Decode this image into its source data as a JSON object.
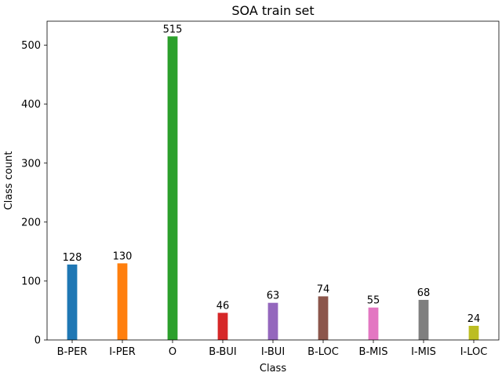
{
  "chart_data": {
    "type": "bar",
    "title": "SOA train set",
    "xlabel": "Class",
    "ylabel": "Class count",
    "categories": [
      "B-PER",
      "I-PER",
      "O",
      "B-BUI",
      "I-BUI",
      "B-LOC",
      "B-MIS",
      "I-MIS",
      "I-LOC"
    ],
    "values": [
      128,
      130,
      515,
      46,
      63,
      74,
      55,
      68,
      24
    ],
    "data_labels": [
      "128",
      "130",
      "515",
      "46",
      "63",
      "74",
      "55",
      "68",
      "24"
    ],
    "colors": [
      "#1f77b4",
      "#ff7f0e",
      "#2ca02c",
      "#d62728",
      "#9467bd",
      "#8c564b",
      "#e377c2",
      "#7f7f7f",
      "#bcbd22"
    ],
    "yticks": [
      0,
      100,
      200,
      300,
      400,
      500
    ],
    "ylim": [
      0,
      540.75
    ],
    "grid": false,
    "legend": "none"
  }
}
